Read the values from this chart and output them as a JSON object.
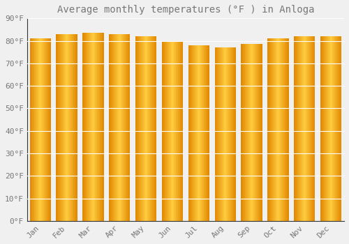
{
  "title": "Average monthly temperatures (°F ) in Anloga",
  "months": [
    "Jan",
    "Feb",
    "Mar",
    "Apr",
    "May",
    "Jun",
    "Jul",
    "Aug",
    "Sep",
    "Oct",
    "Nov",
    "Dec"
  ],
  "values": [
    81,
    83,
    83.5,
    83,
    82,
    80,
    78,
    77,
    78.5,
    81,
    82,
    82
  ],
  "ylim": [
    0,
    90
  ],
  "yticks": [
    0,
    10,
    20,
    30,
    40,
    50,
    60,
    70,
    80,
    90
  ],
  "ytick_labels": [
    "0°F",
    "10°F",
    "20°F",
    "30°F",
    "40°F",
    "50°F",
    "60°F",
    "70°F",
    "80°F",
    "90°F"
  ],
  "bar_color_main": "#F5A800",
  "bar_color_light": "#FFD060",
  "bar_color_edge": "#E07800",
  "background_color": "#F0F0F0",
  "grid_color": "#FFFFFF",
  "title_fontsize": 10,
  "tick_fontsize": 8,
  "font_color": "#777777"
}
